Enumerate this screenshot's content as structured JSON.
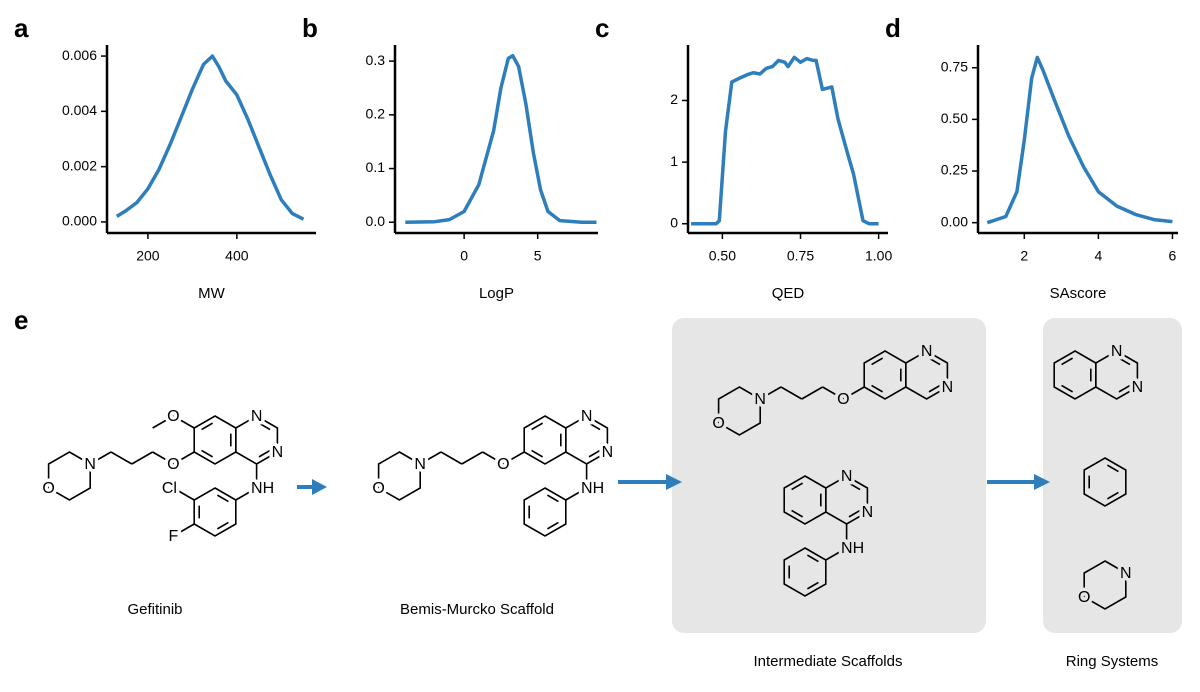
{
  "chart_data": [
    {
      "type": "line",
      "panel": "a",
      "x_label": "MW",
      "color": "#2e7ebc",
      "x": [
        130,
        150,
        175,
        200,
        225,
        250,
        275,
        300,
        325,
        345,
        360,
        375,
        400,
        425,
        450,
        475,
        500,
        525,
        550
      ],
      "values": [
        0.0002,
        0.0004,
        0.0007,
        0.0012,
        0.0019,
        0.0028,
        0.0038,
        0.0048,
        0.0057,
        0.006,
        0.0056,
        0.0051,
        0.0046,
        0.0037,
        0.0027,
        0.0017,
        0.0008,
        0.0003,
        0.0001
      ],
      "xlim": [
        108,
        578
      ],
      "ylim": [
        -0.0004,
        0.0064
      ],
      "xticks": [
        200,
        400
      ],
      "yticks": [
        {
          "value": 0,
          "label": "0.000"
        },
        {
          "value": 0.002,
          "label": "0.002"
        },
        {
          "value": 0.004,
          "label": "0.004"
        },
        {
          "value": 0.006,
          "label": "0.006"
        }
      ]
    },
    {
      "type": "line",
      "panel": "b",
      "x_label": "LogP",
      "color": "#2e7ebc",
      "x": [
        -4,
        -2,
        -1,
        0,
        1,
        2,
        2.5,
        3,
        3.3,
        3.7,
        4.2,
        4.7,
        5.2,
        5.7,
        6.5,
        8,
        9
      ],
      "values": [
        0,
        0.001,
        0.005,
        0.02,
        0.07,
        0.17,
        0.25,
        0.305,
        0.31,
        0.29,
        0.22,
        0.13,
        0.06,
        0.02,
        0.003,
        0,
        0
      ],
      "xlim": [
        -4.7,
        9.1
      ],
      "ylim": [
        -0.02,
        0.33
      ],
      "xticks": [
        0,
        5
      ],
      "yticks": [
        {
          "value": 0,
          "label": "0.0"
        },
        {
          "value": 0.1,
          "label": "0.1"
        },
        {
          "value": 0.2,
          "label": "0.2"
        },
        {
          "value": 0.3,
          "label": "0.3"
        }
      ]
    },
    {
      "type": "line",
      "panel": "c",
      "x_label": "QED",
      "color": "#2e7ebc",
      "x": [
        0.4,
        0.48,
        0.49,
        0.51,
        0.53,
        0.55,
        0.58,
        0.6,
        0.62,
        0.64,
        0.66,
        0.68,
        0.7,
        0.71,
        0.73,
        0.75,
        0.77,
        0.79,
        0.8,
        0.82,
        0.85,
        0.87,
        0.9,
        0.92,
        0.95,
        0.97,
        1.0
      ],
      "values": [
        0,
        0,
        0.05,
        1.5,
        2.3,
        2.35,
        2.42,
        2.45,
        2.43,
        2.52,
        2.55,
        2.65,
        2.62,
        2.55,
        2.7,
        2.62,
        2.68,
        2.65,
        2.65,
        2.18,
        2.22,
        1.7,
        1.15,
        0.8,
        0.05,
        0,
        0
      ],
      "xlim": [
        0.39,
        1.03
      ],
      "ylim": [
        -0.15,
        2.9
      ],
      "xticks": [
        {
          "value": 0.5,
          "label": "0.50"
        },
        {
          "value": 0.75,
          "label": "0.75"
        },
        {
          "value": 1.0,
          "label": "1.00"
        }
      ],
      "yticks": [
        0,
        1,
        2
      ]
    },
    {
      "type": "line",
      "panel": "d",
      "x_label": "SAscore",
      "color": "#2e7ebc",
      "x": [
        1,
        1.5,
        1.8,
        2,
        2.2,
        2.35,
        2.5,
        2.8,
        3.2,
        3.6,
        4,
        4.5,
        5,
        5.5,
        6
      ],
      "values": [
        0,
        0.03,
        0.15,
        0.4,
        0.7,
        0.8,
        0.74,
        0.6,
        0.42,
        0.27,
        0.15,
        0.08,
        0.04,
        0.015,
        0.005
      ],
      "xlim": [
        0.75,
        6.15
      ],
      "ylim": [
        -0.05,
        0.86
      ],
      "xticks": [
        2,
        4,
        6
      ],
      "yticks": [
        {
          "value": 0,
          "label": "0.00"
        },
        {
          "value": 0.25,
          "label": "0.25"
        },
        {
          "value": 0.5,
          "label": "0.50"
        },
        {
          "value": 0.75,
          "label": "0.75"
        }
      ]
    }
  ],
  "panel_e": {
    "label": "e",
    "gefitinib": {
      "caption": "Gefitinib",
      "atoms": [
        "O",
        "N",
        "N",
        "O",
        "N",
        "O",
        "NH",
        "Cl",
        "F"
      ]
    },
    "scaffold": {
      "caption": "Bemis-Murcko Scaffold",
      "atoms": [
        "N",
        "N",
        "O",
        "N",
        "O",
        "NH"
      ]
    },
    "intermediates": {
      "caption": "Intermediate Scaffolds",
      "molecules": [
        [
          "N",
          "N",
          "O",
          "N",
          "O"
        ],
        [
          "N",
          "N",
          "NH"
        ]
      ]
    },
    "rings": {
      "caption": "Ring Systems",
      "molecules": [
        [
          "N",
          "N"
        ],
        [
          "N",
          "O"
        ]
      ]
    }
  }
}
